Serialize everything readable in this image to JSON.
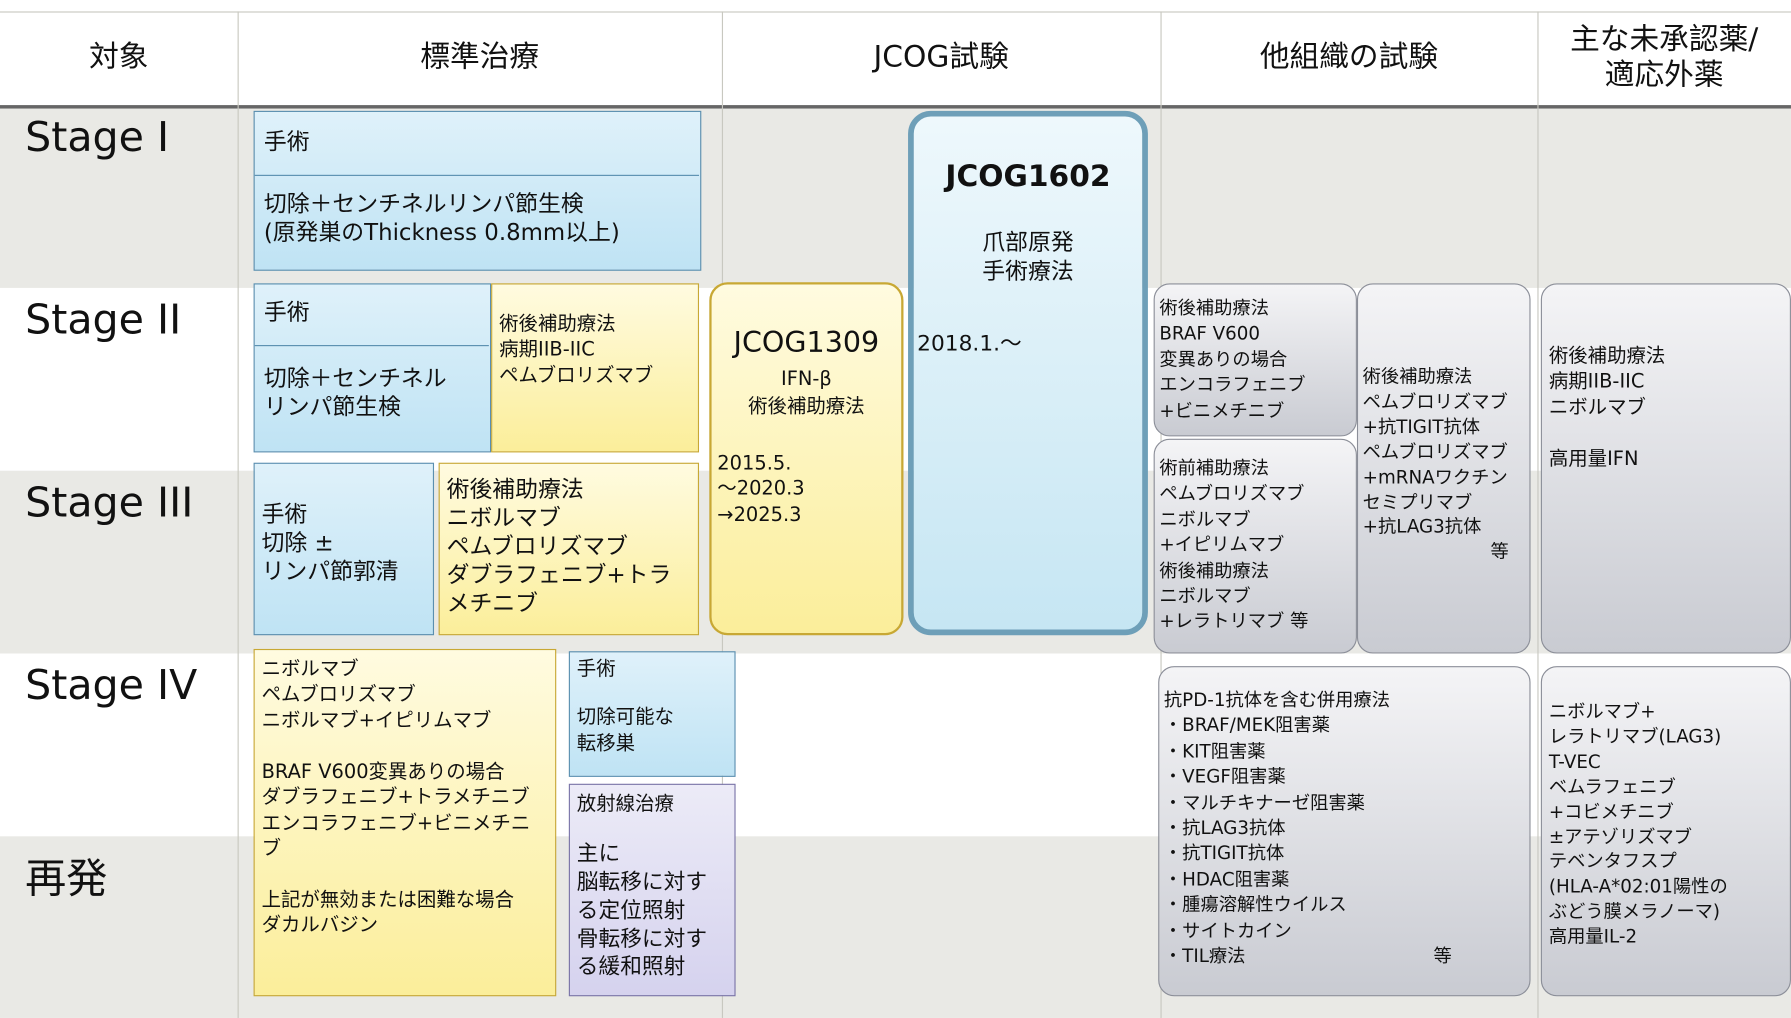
{
  "header": {
    "columns": [
      "対象",
      "標準治療",
      "JCOG試験",
      "他組織の試験",
      "主な未承認薬/\n適応外薬"
    ]
  },
  "rows": [
    "Stage I",
    "Stage II",
    "Stage III",
    "Stage IV",
    "再発"
  ],
  "standard": {
    "stage1": {
      "title": "手術",
      "body": "切除＋センチネルリンパ節生検\n(原発巣のThickness 0.8mm以上)"
    },
    "stage2_surgery": {
      "title": "手術",
      "body": "切除＋センチネル\nリンパ節生検"
    },
    "stage2_adjuvant": "術後補助療法\n病期IIB-IIC\nペムブロリズマブ",
    "stage3_surgery": "手術\n切除 ±\nリンパ節郭清",
    "stage3_adjuvant": "術後補助療法\nニボルマブ\nペムブロリズマブ\nダブラフェニブ+トラメチニブ",
    "stage4_drugs": "ニボルマブ\nペムブロリズマブ\nニボルマブ+イピリムマブ\n\nBRAF V600変異ありの場合\nダブラフェニブ+トラメチニブ\nエンコラフェニブ+ビニメチニブ\n\n上記が無効または困難な場合\nダカルバジン",
    "stage4_surgery": {
      "title": "手術",
      "body": "切除可能な\n転移巣"
    },
    "radiation": {
      "title": "放射線治療",
      "body": "主に\n脳転移に対する定位照射\n骨転移に対する緩和照射"
    }
  },
  "jcog": {
    "jcog1309": {
      "id": "JCOG1309",
      "drug": "IFN-β",
      "desc": "術後補助療法",
      "period": "2015.5.\n～2020.3\n→2025.3"
    },
    "jcog1602": {
      "id": "JCOG1602",
      "desc": "爪部原発\n手術療法",
      "period": "2018.1.～"
    }
  },
  "other_trials": {
    "box1": "術後補助療法\nBRAF V600\n変異ありの場合\nエンコラフェニブ\n+ビニメチニブ",
    "box2": "術前補助療法\nペムブロリズマブ\nニボルマブ\n+イピリムマブ\n術後補助療法\nニボルマブ\n+レラトリマブ 等",
    "box3": {
      "body": "術後補助療法\nペムブロリズマブ\n+抗TIGIT抗体\nペムブロリズマブ\n+mRNAワクチン\nセミプリマブ\n+抗LAG3抗体",
      "note": "等"
    },
    "box4": {
      "body": "抗PD-1抗体を含む併用療法\n・BRAF/MEK阻害薬\n・KIT阻害薬\n・VEGF阻害薬\n・マルチキナーゼ阻害薬\n・抗LAG3抗体\n・抗TIGIT抗体\n・HDAC阻害薬\n・腫瘍溶解性ウイルス\n・サイトカイン\n・TIL療法",
      "note": "等"
    }
  },
  "unapproved": {
    "box1": "術後補助療法\n病期IIB-IIC\nニボルマブ\n\n高用量IFN",
    "box2": "ニボルマブ+\nレラトリマブ(LAG3)\nT-VEC\nベムラフェニブ\n+コビメチニブ\n±アテゾリズマブ\nテベンタフスプ\n(HLA-A*02:01陽性の\nぶどう膜メラノーマ)\n高用量IL-2"
  }
}
